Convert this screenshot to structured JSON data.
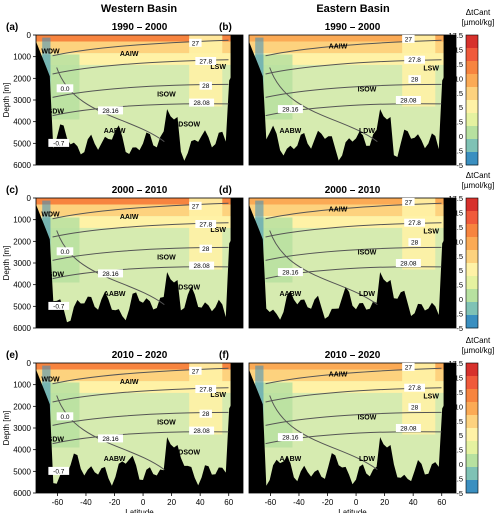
{
  "figure": {
    "column_titles": [
      "Western Basin",
      "Eastern Basin"
    ],
    "colorbar_label_line1": "ΔtCant",
    "colorbar_label_line2": "[µmol/kg]",
    "colorbar_ticks": [
      "17.5",
      "15",
      "12.5",
      "10",
      "7.5",
      "5",
      "2.5",
      "0",
      "-2.5",
      "-5"
    ],
    "colorbar_colors": [
      "#d7312c",
      "#f05a3b",
      "#f7843f",
      "#fbaa55",
      "#fdd27e",
      "#fff2a6",
      "#e5f2a0",
      "#b7e1a0",
      "#7fc2b5",
      "#3a8fc0"
    ]
  },
  "chart_data": [
    {
      "type": "heatmap",
      "panel": "(a)",
      "basin": "Western Basin",
      "period": "1990 – 2000",
      "ylabel": "Depth [m]",
      "xlabel": "",
      "ylim": [
        6000,
        0
      ],
      "xlim": [
        -75,
        70
      ],
      "y_ticks": [
        "0",
        "1000",
        "2000",
        "3000",
        "4000",
        "5000",
        "6000"
      ],
      "x_ticks": [],
      "water_masses": [
        "WDW",
        "AAIW",
        "LSW",
        "ISOW",
        "WSDW",
        "AABW",
        "DSOW"
      ],
      "isopycnals": [
        "27",
        "27.8",
        "28",
        "28.08",
        "28.16",
        "0.0",
        "-0.7"
      ]
    },
    {
      "type": "heatmap",
      "panel": "(b)",
      "basin": "Eastern Basin",
      "period": "1990 – 2000",
      "ylabel": "",
      "xlabel": "",
      "ylim": [
        6000,
        0
      ],
      "xlim": [
        -75,
        70
      ],
      "y_ticks": [],
      "x_ticks": [],
      "water_masses": [
        "AAIW",
        "LSW",
        "ISOW",
        "AABW",
        "LDW"
      ],
      "isopycnals": [
        "27",
        "27.8",
        "28",
        "28.08",
        "28.16"
      ]
    },
    {
      "type": "heatmap",
      "panel": "(c)",
      "basin": "Western Basin",
      "period": "2000 – 2010",
      "ylabel": "Depth [m]",
      "xlabel": "",
      "ylim": [
        6000,
        0
      ],
      "xlim": [
        -75,
        70
      ],
      "y_ticks": [
        "0",
        "1000",
        "2000",
        "3000",
        "4000",
        "5000",
        "6000"
      ],
      "x_ticks": [],
      "water_masses": [
        "WDW",
        "AAIW",
        "LSW",
        "ISOW",
        "WSDW",
        "AABW",
        "DSOW"
      ],
      "isopycnals": [
        "27",
        "27.8",
        "28",
        "28.08",
        "28.16",
        "0.0",
        "-0.7"
      ]
    },
    {
      "type": "heatmap",
      "panel": "(d)",
      "basin": "Eastern Basin",
      "period": "2000 – 2010",
      "ylabel": "",
      "xlabel": "",
      "ylim": [
        6000,
        0
      ],
      "xlim": [
        -75,
        70
      ],
      "y_ticks": [],
      "x_ticks": [],
      "water_masses": [
        "AAIW",
        "LSW",
        "ISOW",
        "AABW",
        "LDW"
      ],
      "isopycnals": [
        "27",
        "27.8",
        "28",
        "28.08",
        "28.16"
      ]
    },
    {
      "type": "heatmap",
      "panel": "(e)",
      "basin": "Western Basin",
      "period": "2010 – 2020",
      "ylabel": "Depth [m]",
      "xlabel": "Latitude",
      "ylim": [
        6000,
        0
      ],
      "xlim": [
        -75,
        70
      ],
      "y_ticks": [
        "0",
        "1000",
        "2000",
        "3000",
        "4000",
        "5000",
        "6000"
      ],
      "x_ticks": [
        "-60",
        "-40",
        "-20",
        "0",
        "20",
        "40",
        "60"
      ],
      "water_masses": [
        "WDW",
        "AAIW",
        "LSW",
        "ISOW",
        "WSDW",
        "AABW",
        "DSOW"
      ],
      "isopycnals": [
        "27",
        "27.8",
        "28",
        "28.08",
        "28.16",
        "0.0",
        "-0.7"
      ]
    },
    {
      "type": "heatmap",
      "panel": "(f)",
      "basin": "Eastern Basin",
      "period": "2010 – 2020",
      "ylabel": "",
      "xlabel": "Latitude",
      "ylim": [
        6000,
        0
      ],
      "xlim": [
        -75,
        70
      ],
      "y_ticks": [],
      "x_ticks": [
        "-60",
        "-40",
        "-20",
        "0",
        "20",
        "40",
        "60"
      ],
      "water_masses": [
        "AAIW",
        "LSW",
        "ISOW",
        "AABW",
        "LDW"
      ],
      "isopycnals": [
        "27",
        "27.8",
        "28",
        "28.08",
        "28.16"
      ]
    }
  ]
}
